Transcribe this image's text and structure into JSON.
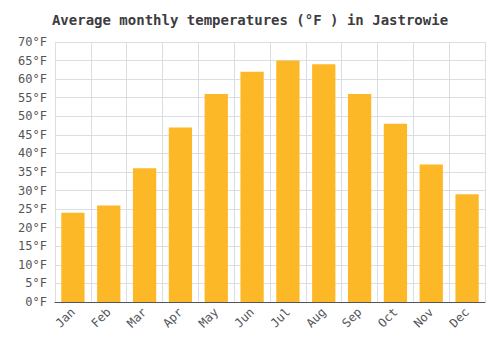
{
  "chart_data": {
    "type": "bar",
    "title": "Average monthly temperatures (°F ) in Jastrowie",
    "categories": [
      "Jan",
      "Feb",
      "Mar",
      "Apr",
      "May",
      "Jun",
      "Jul",
      "Aug",
      "Sep",
      "Oct",
      "Nov",
      "Dec"
    ],
    "values": [
      24,
      26,
      36,
      47,
      56,
      62,
      65,
      64,
      56,
      48,
      37,
      29
    ],
    "color": "#FDB827",
    "ylim": [
      0,
      70
    ],
    "yticks": [
      {
        "value": 0,
        "label": "0°F"
      },
      {
        "value": 5,
        "label": "5°F"
      },
      {
        "value": 10,
        "label": "10°F"
      },
      {
        "value": 15,
        "label": "15°F"
      },
      {
        "value": 20,
        "label": "20°F"
      },
      {
        "value": 25,
        "label": "25°F"
      },
      {
        "value": 30,
        "label": "30°F"
      },
      {
        "value": 35,
        "label": "35°F"
      },
      {
        "value": 40,
        "label": "40°F"
      },
      {
        "value": 45,
        "label": "45°F"
      },
      {
        "value": 50,
        "label": "50°F"
      },
      {
        "value": 55,
        "label": "55°F"
      },
      {
        "value": 60,
        "label": "60°F"
      },
      {
        "value": 65,
        "label": "65°F"
      },
      {
        "value": 70,
        "label": "70°F"
      }
    ],
    "grid": true
  }
}
